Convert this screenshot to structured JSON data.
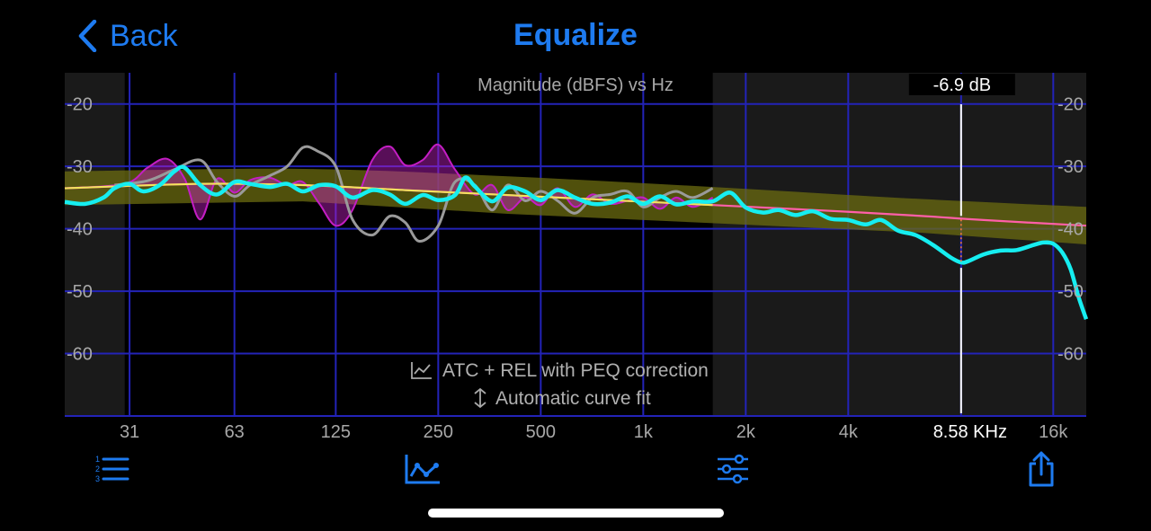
{
  "nav": {
    "back_label": "Back",
    "title": "Equalize"
  },
  "chart_data": {
    "type": "line",
    "title": "Magnitude (dBFS) vs Hz",
    "xscale": "log",
    "xlim": [
      20,
      20000
    ],
    "ylim": [
      -70,
      -15
    ],
    "y_ticks": [
      -20,
      -30,
      -40,
      -50,
      -60
    ],
    "y_tick_labels": [
      "-20",
      "-30",
      "-40",
      "-50",
      "-60"
    ],
    "x_ticks": [
      31,
      63,
      125,
      250,
      500,
      1000,
      2000,
      4000,
      8580,
      16000
    ],
    "x_tick_labels": [
      "31",
      "63",
      "125",
      "250",
      "500",
      "1k",
      "2k",
      "4k",
      "8.58 KHz",
      "16k"
    ],
    "grid": true,
    "shaded_regions": [
      [
        20,
        30
      ],
      [
        1600,
        20000
      ]
    ],
    "cursor": {
      "freq": 8580,
      "label": "8.58 KHz",
      "value_label": "-6.9 dB",
      "target": -38.5,
      "measured": -45.4
    },
    "annotations": [
      "ATC + REL with PEQ correction",
      "Automatic curve fit"
    ],
    "series": [
      {
        "kind": "target",
        "color": "#ff5fa8",
        "x": [
          20,
          50,
          100,
          200,
          400,
          800,
          1600,
          3200,
          6400,
          10000,
          20000
        ],
        "y": [
          -33.5,
          -32.8,
          -33.0,
          -33.8,
          -34.6,
          -35.4,
          -36.2,
          -37.0,
          -37.9,
          -38.6,
          -39.5
        ]
      },
      {
        "kind": "tolerance-band",
        "color": "#6b6b10",
        "x": [
          20,
          100,
          400,
          1600,
          6400,
          20000
        ],
        "upper": [
          -30.8,
          -30.4,
          -31.6,
          -33.3,
          -35.2,
          -36.5
        ],
        "lower": [
          -36.2,
          -35.6,
          -37.6,
          -39.1,
          -40.6,
          -42.5
        ]
      },
      {
        "kind": "uncorrected",
        "color": "#9a9a9a",
        "x": [
          28,
          35,
          42,
          50,
          56,
          63,
          70,
          80,
          90,
          100,
          110,
          125,
          140,
          160,
          180,
          200,
          220,
          250,
          280,
          320,
          360,
          400,
          450,
          500,
          560,
          630,
          710,
          800,
          900,
          1000,
          1120,
          1250,
          1400,
          1600
        ],
        "y": [
          -33.0,
          -32.3,
          -30.5,
          -29.0,
          -32.5,
          -34.8,
          -33.0,
          -31.5,
          -30.0,
          -27.0,
          -27.5,
          -30.0,
          -38.5,
          -41.0,
          -38.0,
          -39.0,
          -42.0,
          -39.5,
          -32.5,
          -33.0,
          -37.0,
          -33.0,
          -35.5,
          -34.0,
          -35.5,
          -37.5,
          -35.0,
          -34.5,
          -34.0,
          -36.5,
          -35.0,
          -34.0,
          -35.0,
          -33.5
        ]
      },
      {
        "kind": "correction",
        "color": "#c41ec4",
        "x": [
          20,
          30,
          35,
          40,
          45,
          50,
          56,
          63,
          70,
          80,
          90,
          100,
          112,
          125,
          140,
          160,
          180,
          200,
          225,
          250,
          280,
          320,
          360,
          400,
          450,
          500,
          560,
          630,
          710,
          800,
          900,
          1000,
          1120,
          1250,
          1400,
          1600
        ],
        "y": [
          -33.5,
          -32.8,
          -30.2,
          -28.8,
          -32.0,
          -38.5,
          -32.0,
          -34.2,
          -32.2,
          -31.8,
          -33.0,
          -32.5,
          -36.0,
          -39.5,
          -37.0,
          -29.0,
          -26.8,
          -29.8,
          -29.0,
          -26.5,
          -30.5,
          -34.5,
          -33.0,
          -37.0,
          -35.0,
          -36.2,
          -33.5,
          -36.5,
          -34.5,
          -36.0,
          -35.5,
          -35.0,
          -36.8,
          -35.0,
          -36.5,
          -35.0
        ]
      },
      {
        "kind": "corrected",
        "color": "#16eef0",
        "x": [
          20,
          23,
          26,
          28,
          31,
          34,
          38,
          42,
          45,
          50,
          56,
          63,
          70,
          80,
          90,
          100,
          112,
          125,
          140,
          160,
          180,
          200,
          225,
          250,
          280,
          300,
          320,
          360,
          400,
          450,
          500,
          560,
          630,
          710,
          800,
          900,
          1000,
          1120,
          1250,
          1400,
          1600,
          1800,
          2000,
          2250,
          2500,
          2800,
          3150,
          3550,
          4000,
          4500,
          5000,
          5600,
          6300,
          7100,
          8000,
          8580,
          9000,
          10000,
          11200,
          12500,
          14000,
          15000,
          16000,
          17000,
          18000,
          19000,
          20000
        ],
        "y": [
          -35.7,
          -36.0,
          -35.0,
          -33.5,
          -32.8,
          -34.0,
          -33.0,
          -30.8,
          -30.2,
          -33.0,
          -34.5,
          -32.5,
          -32.8,
          -33.3,
          -32.8,
          -34.0,
          -33.0,
          -33.2,
          -35.0,
          -33.8,
          -34.5,
          -36.0,
          -34.6,
          -35.4,
          -34.6,
          -31.8,
          -33.2,
          -35.6,
          -33.4,
          -34.0,
          -35.4,
          -33.8,
          -35.0,
          -36.0,
          -35.8,
          -34.8,
          -36.0,
          -34.8,
          -36.1,
          -35.6,
          -35.6,
          -34.2,
          -36.6,
          -37.4,
          -37.0,
          -37.8,
          -37.2,
          -38.4,
          -38.6,
          -39.3,
          -38.6,
          -40.3,
          -41.0,
          -42.6,
          -44.6,
          -45.4,
          -45.2,
          -44.1,
          -43.5,
          -43.4,
          -42.6,
          -42.2,
          -42.4,
          -43.8,
          -46.5,
          -51.0,
          -54.5
        ]
      }
    ]
  },
  "toolbar": {
    "list_icon": "numbered-list-icon",
    "graph_icon": "line-graph-icon",
    "sliders_icon": "sliders-icon",
    "share_icon": "share-icon",
    "accent": "#1e7bf0"
  }
}
